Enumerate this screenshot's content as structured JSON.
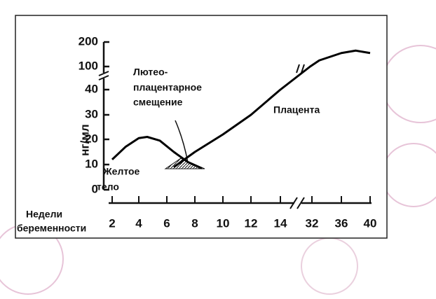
{
  "chart_data": {
    "type": "line",
    "y_label": "нг/мл",
    "x_label": [
      "Недели",
      "беременности"
    ],
    "annotations": {
      "shift": [
        "Лютео-",
        "плацентарное",
        "смещение"
      ],
      "placenta": [
        "Плацента"
      ],
      "corpus": [
        "Желтое",
        "тело"
      ]
    },
    "series": [
      {
        "name": "Желтое тело",
        "color": "#000000",
        "x": [
          2,
          3,
          4,
          4.6,
          5.5,
          6.5,
          7.5,
          8.5
        ],
        "values": [
          12,
          17,
          20.5,
          21,
          19.5,
          15,
          11,
          8.5
        ]
      },
      {
        "name": "Плацента",
        "color": "#000000",
        "x": [
          6.5,
          8,
          10,
          12,
          14,
          31,
          33,
          36,
          38,
          40
        ],
        "values": [
          9,
          15,
          22,
          30,
          40,
          100,
          125,
          155,
          165,
          155
        ]
      }
    ],
    "xticks": [
      2,
      4,
      6,
      8,
      10,
      12,
      14,
      32,
      36,
      40
    ],
    "yticks": [
      0,
      10,
      20,
      30,
      40,
      100,
      200
    ]
  }
}
